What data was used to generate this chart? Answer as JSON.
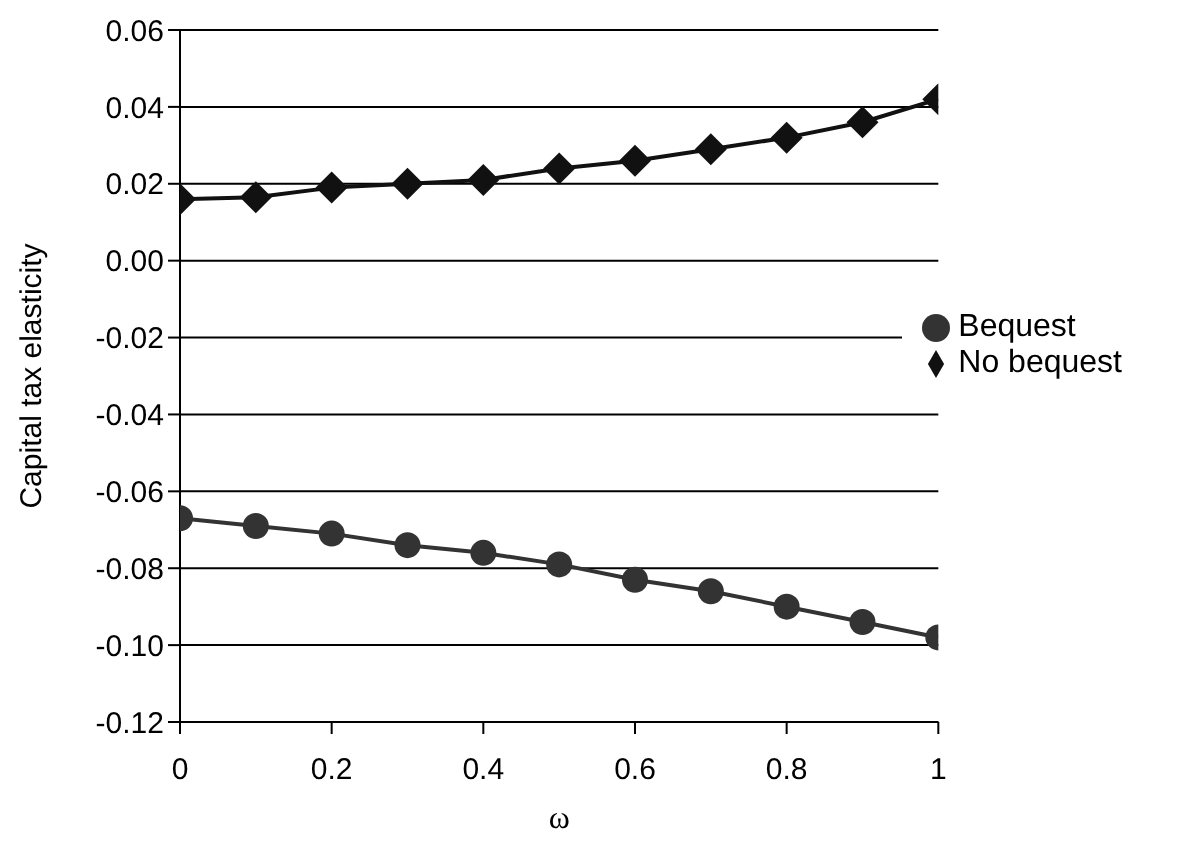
{
  "chart_data": {
    "type": "line",
    "xlabel": "ω",
    "ylabel": "Capital tax elasticity",
    "x": [
      0,
      0.1,
      0.2,
      0.3,
      0.4,
      0.5,
      0.6,
      0.7,
      0.8,
      0.9,
      1
    ],
    "series": [
      {
        "name": "No bequest",
        "color": "#111111",
        "marker": "diamond",
        "values": [
          0.016,
          0.0165,
          0.019,
          0.02,
          0.021,
          0.024,
          0.026,
          0.029,
          0.032,
          0.036,
          0.042
        ]
      },
      {
        "name": "Bequest",
        "color": "#333333",
        "marker": "circle",
        "values": [
          -0.067,
          -0.069,
          -0.071,
          -0.074,
          -0.076,
          -0.079,
          -0.083,
          -0.086,
          -0.09,
          -0.094,
          -0.098
        ]
      }
    ],
    "xlim": [
      0,
      1
    ],
    "xticks": [
      0,
      0.2,
      0.4,
      0.6,
      0.8,
      1
    ],
    "ylim": [
      -0.12,
      0.06
    ],
    "yticks": [
      {
        "value": -0.12,
        "label": "-0.12"
      },
      {
        "value": -0.1,
        "label": "-0.10"
      },
      {
        "value": -0.08,
        "label": "-0.08"
      },
      {
        "value": -0.06,
        "label": "-0.06"
      },
      {
        "value": -0.04,
        "label": "-0.04"
      },
      {
        "value": -0.02,
        "label": "-0.02"
      },
      {
        "value": 0,
        "label": "0.00"
      },
      {
        "value": 0.02,
        "label": "0.02"
      },
      {
        "value": 0.04,
        "label": "0.04"
      },
      {
        "value": 0.06,
        "label": "0.06"
      }
    ],
    "grid": "y",
    "legend": "right",
    "line_style": "solid"
  }
}
